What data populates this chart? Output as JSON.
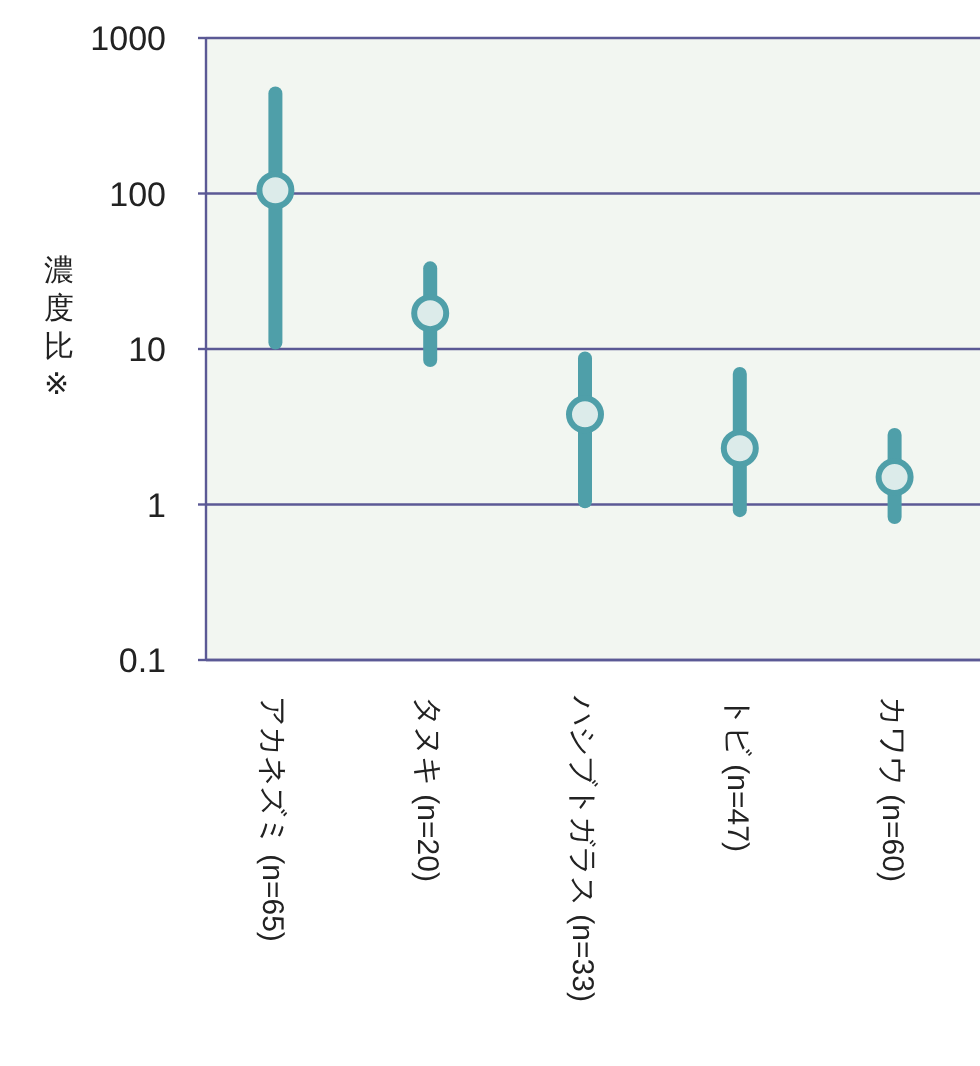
{
  "chart_data": {
    "type": "scatter",
    "ylabel": "濃度比※",
    "categories": [
      "アカネズミ (n=65)",
      "タヌキ (n=20)",
      "ハシブトガラス (n=33)",
      "トビ (n=47)",
      "カワウ (n=60)"
    ],
    "series": [
      {
        "color": "#4f9fa9",
        "values": [
          105,
          17,
          3.8,
          2.3,
          1.5
        ],
        "errors": [
          [
            11,
            440
          ],
          [
            8.5,
            33
          ],
          [
            1.05,
            8.7
          ],
          [
            0.92,
            6.9
          ],
          [
            0.83,
            2.8
          ]
        ]
      }
    ],
    "log": "y",
    "ylim": [
      0.1,
      1000
    ],
    "yticks": [
      0.1,
      1,
      10,
      100,
      1000
    ],
    "grid": "y",
    "marker": "circle"
  }
}
